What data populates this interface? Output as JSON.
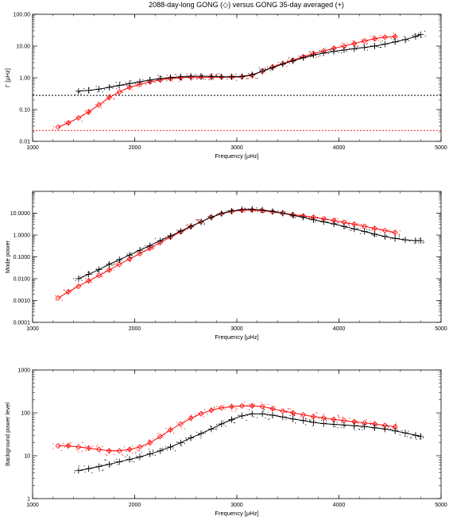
{
  "figure": {
    "title": "2088-day-long GONG (◇) versus GONG 35-day averaged (+)"
  },
  "colors": {
    "long_series": "#ff0000",
    "short_series": "#000000",
    "axes": "#000000"
  },
  "chart_data": [
    {
      "type": "line",
      "ylabel": "Γ [μHz]",
      "xlabel": "Frequency [μHz]",
      "xlim": [
        1000,
        5000
      ],
      "ylim": [
        0.01,
        100
      ],
      "yscale": "log",
      "grid": false,
      "x_ticks": [
        "1000",
        "2000",
        "3000",
        "4000",
        "5000"
      ],
      "y_ticks": [
        "0.01",
        "0.10",
        "1.00",
        "10.00",
        "100.00"
      ],
      "hlines": [
        {
          "y": 0.28,
          "color": "#000000",
          "style": "dotted"
        },
        {
          "y": 0.022,
          "color": "#ff0000",
          "style": "dotted"
        }
      ],
      "series": [
        {
          "marker": "diamond",
          "color": "#ff0000",
          "x": [
            1250,
            1350,
            1450,
            1550,
            1650,
            1750,
            1850,
            1950,
            2050,
            2150,
            2250,
            2350,
            2450,
            2550,
            2650,
            2750,
            2850,
            2950,
            3050,
            3150,
            3250,
            3350,
            3450,
            3550,
            3650,
            3750,
            3850,
            3950,
            4050,
            4150,
            4250,
            4350,
            4450,
            4550
          ],
          "y": [
            0.028,
            0.038,
            0.055,
            0.085,
            0.14,
            0.24,
            0.36,
            0.5,
            0.62,
            0.75,
            0.85,
            0.95,
            1.0,
            1.05,
            1.05,
            1.05,
            1.05,
            1.05,
            1.08,
            1.2,
            1.6,
            2.2,
            2.8,
            3.6,
            4.6,
            5.8,
            7.0,
            8.5,
            10.0,
            12.0,
            14.5,
            17.0,
            19.0,
            20.0
          ]
        },
        {
          "marker": "plus",
          "color": "#000000",
          "x": [
            1450,
            1550,
            1650,
            1750,
            1850,
            1950,
            2050,
            2150,
            2250,
            2350,
            2450,
            2550,
            2650,
            2750,
            2850,
            2950,
            3050,
            3150,
            3250,
            3350,
            3450,
            3550,
            3650,
            3750,
            3850,
            3950,
            4050,
            4150,
            4250,
            4350,
            4450,
            4550,
            4650,
            4750,
            4800
          ],
          "y": [
            0.38,
            0.4,
            0.44,
            0.5,
            0.58,
            0.66,
            0.75,
            0.85,
            0.95,
            1.02,
            1.08,
            1.12,
            1.12,
            1.1,
            1.08,
            1.08,
            1.1,
            1.25,
            1.6,
            2.1,
            2.7,
            3.4,
            4.3,
            5.2,
            6.0,
            6.8,
            7.5,
            8.2,
            9.0,
            10.0,
            11.5,
            13.5,
            16.0,
            20.0,
            23.0
          ]
        }
      ]
    },
    {
      "type": "line",
      "ylabel": "Mode power",
      "xlabel": "Frequency [μHz]",
      "xlim": [
        1000,
        5000
      ],
      "ylim": [
        0.0001,
        100
      ],
      "yscale": "log",
      "grid": false,
      "x_ticks": [
        "1000",
        "2000",
        "3000",
        "4000",
        "5000"
      ],
      "y_ticks": [
        "0.0001",
        "0.0010",
        "0.0100",
        "0.1000",
        "1.0000",
        "10.0000"
      ],
      "series": [
        {
          "marker": "diamond",
          "color": "#ff0000",
          "x": [
            1250,
            1350,
            1450,
            1550,
            1650,
            1750,
            1850,
            1950,
            2050,
            2150,
            2250,
            2350,
            2450,
            2550,
            2650,
            2750,
            2850,
            2950,
            3050,
            3150,
            3250,
            3350,
            3450,
            3550,
            3650,
            3750,
            3850,
            3950,
            4050,
            4150,
            4250,
            4350,
            4450,
            4550
          ],
          "y": [
            0.0013,
            0.0025,
            0.0045,
            0.008,
            0.014,
            0.025,
            0.045,
            0.08,
            0.14,
            0.25,
            0.45,
            0.8,
            1.4,
            2.4,
            4.0,
            6.5,
            9.5,
            12.0,
            13.5,
            14.0,
            13.0,
            11.5,
            10.0,
            8.5,
            7.5,
            6.5,
            5.5,
            4.6,
            3.8,
            3.1,
            2.5,
            2.0,
            1.6,
            1.3
          ]
        },
        {
          "marker": "plus",
          "color": "#000000",
          "x": [
            1450,
            1550,
            1650,
            1750,
            1850,
            1950,
            2050,
            2150,
            2250,
            2350,
            2450,
            2550,
            2650,
            2750,
            2850,
            2950,
            3050,
            3150,
            3250,
            3350,
            3450,
            3550,
            3650,
            3750,
            3850,
            3950,
            4050,
            4150,
            4250,
            4350,
            4450,
            4550,
            4650,
            4750,
            4800
          ],
          "y": [
            0.01,
            0.016,
            0.026,
            0.045,
            0.075,
            0.12,
            0.2,
            0.33,
            0.55,
            0.9,
            1.5,
            2.5,
            4.0,
            6.5,
            9.5,
            12.5,
            14.5,
            15.0,
            14.0,
            12.0,
            10.0,
            8.0,
            6.5,
            5.0,
            4.0,
            3.2,
            2.5,
            1.9,
            1.45,
            1.1,
            0.85,
            0.7,
            0.6,
            0.55,
            0.55
          ]
        }
      ]
    },
    {
      "type": "line",
      "ylabel": "Background power level",
      "xlabel": "Frequency [μHz]",
      "xlim": [
        1000,
        5000
      ],
      "ylim": [
        1,
        1000
      ],
      "yscale": "log",
      "grid": false,
      "x_ticks": [
        "1000",
        "2000",
        "3000",
        "4000",
        "5000"
      ],
      "y_ticks": [
        "1",
        "10",
        "100",
        "1000"
      ],
      "series": [
        {
          "marker": "diamond",
          "color": "#ff0000",
          "x": [
            1250,
            1350,
            1450,
            1550,
            1650,
            1750,
            1850,
            1950,
            2050,
            2150,
            2250,
            2350,
            2450,
            2550,
            2650,
            2750,
            2850,
            2950,
            3050,
            3150,
            3250,
            3350,
            3450,
            3550,
            3650,
            3750,
            3850,
            3950,
            4050,
            4150,
            4250,
            4350,
            4450,
            4550
          ],
          "y": [
            17,
            17,
            16,
            15,
            14,
            13,
            13,
            14,
            16,
            20,
            28,
            40,
            55,
            75,
            95,
            115,
            130,
            140,
            145,
            145,
            140,
            125,
            110,
            100,
            90,
            82,
            76,
            70,
            66,
            62,
            58,
            55,
            51,
            47
          ]
        },
        {
          "marker": "plus",
          "color": "#000000",
          "x": [
            1450,
            1550,
            1650,
            1750,
            1850,
            1950,
            2050,
            2150,
            2250,
            2350,
            2450,
            2550,
            2650,
            2750,
            2850,
            2950,
            3050,
            3150,
            3250,
            3350,
            3450,
            3550,
            3650,
            3750,
            3850,
            3950,
            4050,
            4150,
            4250,
            4350,
            4450,
            4550,
            4650,
            4750,
            4800
          ],
          "y": [
            4.5,
            5.0,
            5.6,
            6.3,
            7.2,
            8.2,
            9.4,
            11,
            13,
            16,
            20,
            26,
            33,
            42,
            55,
            70,
            85,
            95,
            95,
            88,
            80,
            72,
            66,
            60,
            56,
            54,
            52,
            50,
            48,
            45,
            42,
            38,
            34,
            30,
            28
          ]
        }
      ]
    }
  ]
}
